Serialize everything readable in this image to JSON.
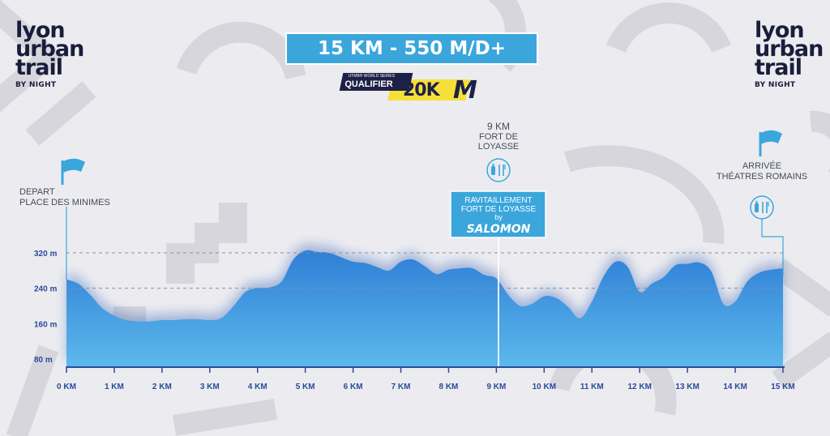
{
  "logo": {
    "line1": "lyon",
    "line2": "urban",
    "line3": "trail",
    "sub": "BY NIGHT"
  },
  "header": {
    "title": "15 KM - 550 M/D+"
  },
  "badge": {
    "series": "UTMB® WORLD SERIES",
    "label": "QUALIFIER",
    "distance": "20K",
    "mark": "M"
  },
  "markers": {
    "start": {
      "line1": "DEPART",
      "line2": "PLACE DES MINIMES"
    },
    "mid": {
      "line1": "9 KM",
      "line2": "FORT DE",
      "line3": "LOYASSE"
    },
    "aid": {
      "line1": "RAVITAILLEMENT",
      "line2": "FORT DE LOYASSE",
      "line3": "by",
      "sponsor": "SALOMON"
    },
    "finish": {
      "line1": "ARRIVÉE",
      "line2": "THÉATRES ROMAINS"
    }
  },
  "icons": {
    "start_flag": "flag-icon",
    "finish_flag": "flag-icon",
    "aid_mid": "bottle-cutlery-icon",
    "aid_finish": "bottle-cutlery-icon"
  },
  "colors": {
    "profile_top": "#2f7fd6",
    "profile_bottom": "#5cb8ec",
    "title_bg": "#3aa6dc",
    "axis_text": "#2b4a9a",
    "navy": "#1e2147",
    "yellow": "#f5e03a"
  },
  "chart_data": {
    "type": "area",
    "xlabel": "",
    "ylabel": "",
    "xlim": [
      0,
      15
    ],
    "ylim": [
      80,
      320
    ],
    "x_ticks": [
      "0 KM",
      "1 KM",
      "2 KM",
      "3 KM",
      "4 KM",
      "5 KM",
      "6 KM",
      "7 KM",
      "8 KM",
      "9 KM",
      "10 KM",
      "11 KM",
      "12 KM",
      "13 KM",
      "14 KM",
      "15 KM"
    ],
    "y_ticks": [
      "80 m",
      "160 m",
      "240 m",
      "320 m"
    ],
    "dashed_lines": [
      240,
      320
    ],
    "series": [
      {
        "x": [
          0,
          0.25,
          0.5,
          0.75,
          1,
          1.25,
          1.5,
          1.75,
          2,
          2.25,
          2.5,
          2.75,
          3,
          3.25,
          3.5,
          3.75,
          4,
          4.25,
          4.5,
          4.75,
          5,
          5.25,
          5.5,
          5.75,
          6,
          6.25,
          6.5,
          6.75,
          7,
          7.25,
          7.5,
          7.75,
          8,
          8.25,
          8.5,
          8.75,
          9,
          9.25,
          9.5,
          9.75,
          10,
          10.25,
          10.5,
          10.75,
          11,
          11.25,
          11.5,
          11.75,
          12,
          12.25,
          12.5,
          12.75,
          13,
          13.25,
          13.5,
          13.75,
          14,
          14.25,
          14.5,
          14.75,
          15
        ],
        "y": [
          260,
          250,
          225,
          195,
          178,
          168,
          165,
          165,
          168,
          168,
          170,
          170,
          168,
          173,
          200,
          232,
          240,
          242,
          255,
          305,
          325,
          322,
          320,
          310,
          300,
          297,
          288,
          280,
          300,
          305,
          290,
          272,
          282,
          285,
          285,
          270,
          262,
          225,
          200,
          205,
          222,
          218,
          198,
          172,
          210,
          268,
          300,
          288,
          232,
          250,
          265,
          292,
          295,
          298,
          278,
          205,
          210,
          255,
          275,
          282,
          285
        ]
      }
    ]
  }
}
